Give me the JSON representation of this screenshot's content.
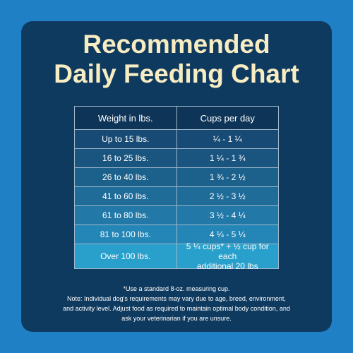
{
  "header": {
    "title_lines": [
      "Recommended",
      "Daily Feeding Chart"
    ]
  },
  "table": {
    "columns": [
      "Weight in lbs.",
      "Cups per day"
    ],
    "rows": [
      [
        "Up to 15 lbs.",
        "¼ - 1 ¼"
      ],
      [
        "16 to 25 lbs.",
        "1 ¼ - 1 ¾"
      ],
      [
        "26 to 40 lbs.",
        "1 ¾ - 2 ½"
      ],
      [
        "41 to 60 lbs.",
        "2 ½ - 3 ½"
      ],
      [
        "61 to 80 lbs.",
        "3 ½ - 4 ¼"
      ],
      [
        "81 to 100 lbs.",
        "4 ¼ - 5 ¼"
      ],
      [
        "Over 100 lbs.",
        [
          "5 ¼ cups* + ½ cup for each",
          "additional 20 lbs"
        ]
      ]
    ]
  },
  "notes": [
    "*Use a standard 8-oz. measuring cup.",
    "Note: Individual dog's requirements may vary due to age, breed, environment,",
    "and activity level. Adjust food as required to maintain optimal body condition, and",
    "ask your veterinarian if you are unsure."
  ]
}
